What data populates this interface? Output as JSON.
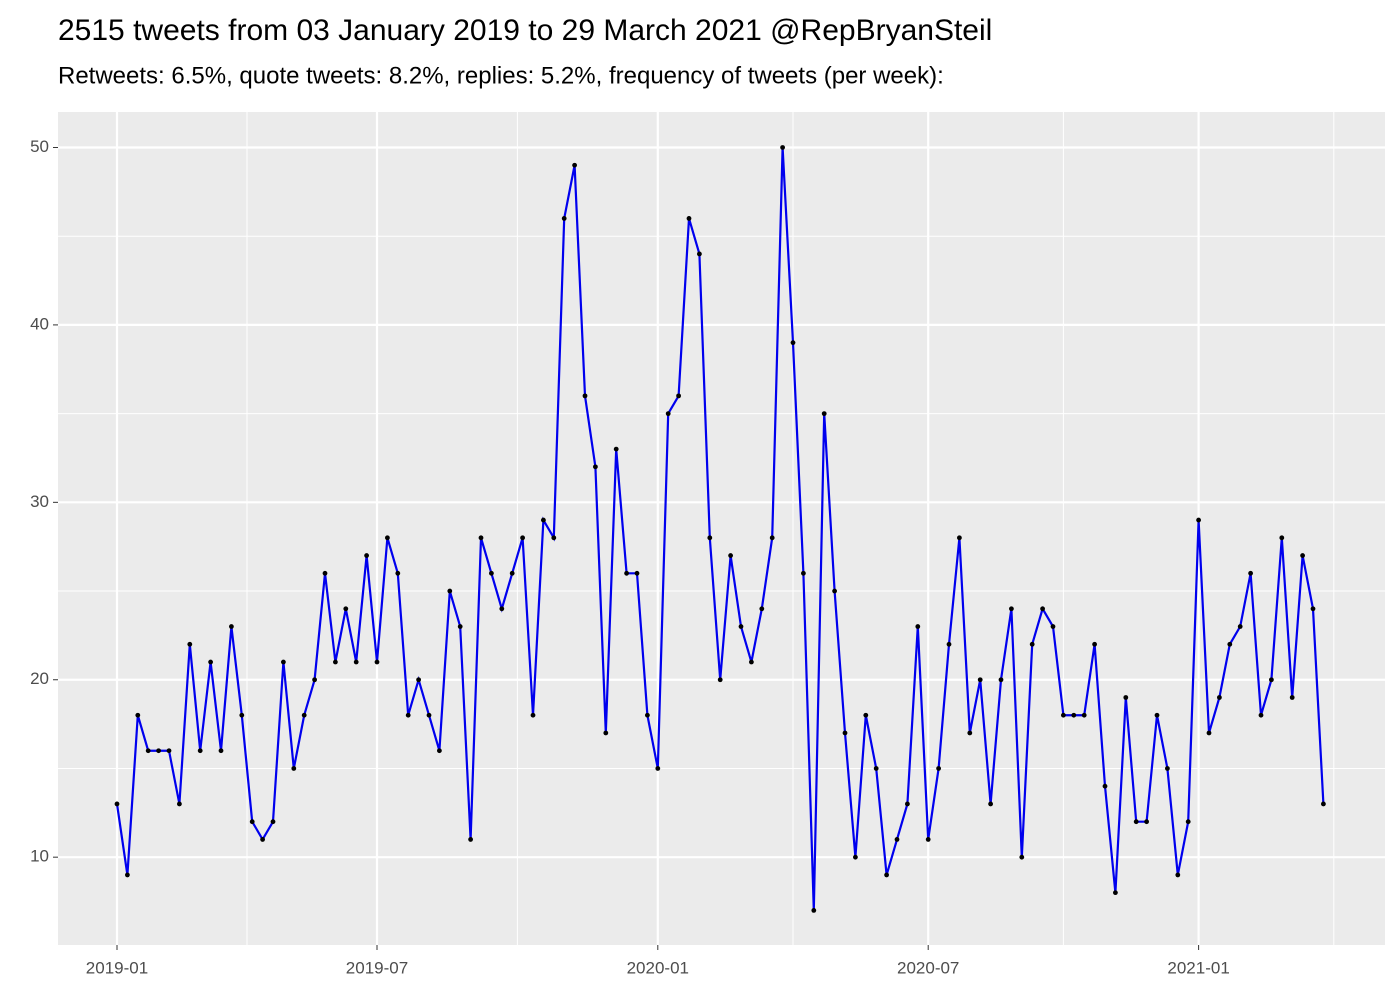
{
  "chart_data": {
    "type": "line",
    "title": "2515 tweets from 03 January 2019 to 29 March 2021 @RepBryanSteil",
    "subtitle": "Retweets: 6.5%, quote tweets: 8.2%, replies: 5.2%, frequency of tweets (per week):",
    "categories": [
      "2019-01",
      null,
      null,
      null,
      null,
      null,
      null,
      null,
      null,
      null,
      null,
      null,
      null,
      null,
      null,
      null,
      null,
      null,
      null,
      null,
      null,
      null,
      null,
      null,
      null,
      "2019-07",
      null,
      null,
      null,
      null,
      null,
      null,
      null,
      null,
      null,
      null,
      null,
      null,
      null,
      null,
      null,
      null,
      null,
      null,
      null,
      null,
      null,
      null,
      null,
      null,
      null,
      null,
      "2020-01",
      null,
      null,
      null,
      null,
      null,
      null,
      null,
      null,
      null,
      null,
      null,
      null,
      null,
      null,
      null,
      null,
      null,
      null,
      null,
      null,
      null,
      null,
      null,
      null,
      null,
      "2020-07",
      null,
      null,
      null,
      null,
      null,
      null,
      null,
      null,
      null,
      null,
      null,
      null,
      null,
      null,
      null,
      null,
      null,
      null,
      null,
      null,
      null,
      null,
      null,
      null,
      null,
      "2021-01",
      null,
      null,
      null,
      null,
      null,
      null,
      null,
      null,
      null,
      null,
      null,
      null
    ],
    "series": [
      {
        "name": "tweets",
        "color": "#0000ee",
        "values": [
          13,
          9,
          18,
          16,
          16,
          16,
          13,
          22,
          16,
          21,
          16,
          23,
          18,
          12,
          11,
          12,
          21,
          15,
          18,
          20,
          26,
          21,
          24,
          21,
          27,
          21,
          28,
          26,
          18,
          20,
          18,
          16,
          25,
          23,
          11,
          28,
          26,
          24,
          26,
          28,
          18,
          29,
          28,
          46,
          49,
          36,
          32,
          17,
          33,
          26,
          26,
          18,
          15,
          35,
          36,
          46,
          44,
          28,
          20,
          27,
          23,
          21,
          24,
          28,
          50,
          39,
          26,
          7,
          35,
          25,
          17,
          10,
          18,
          15,
          9,
          11,
          13,
          23,
          11,
          15,
          22,
          28,
          17,
          20,
          13,
          20,
          24,
          10,
          22,
          24,
          23,
          18,
          18,
          18,
          22,
          14,
          8,
          19,
          12,
          12,
          18,
          15,
          9,
          12,
          29,
          17,
          19,
          22,
          23,
          26,
          18,
          20,
          28,
          19,
          27,
          24,
          13
        ]
      }
    ],
    "ylim": [
      5.05,
      52.0
    ],
    "yticks": [
      10,
      20,
      30,
      40,
      50
    ],
    "grid": true
  }
}
